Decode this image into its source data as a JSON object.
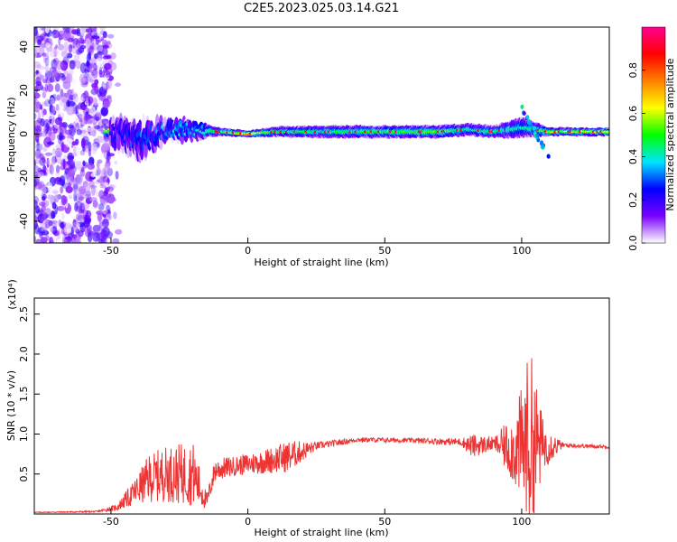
{
  "chart_data": {
    "title": "C2E5.2023.025.03.14.G21",
    "panels": [
      {
        "type": "heatmap",
        "xlabel": "Height of straight line (km)",
        "ylabel": "Frequency (Hz)",
        "xlim": [
          -78,
          132
        ],
        "ylim": [
          -50,
          49
        ],
        "x_ticks": [
          -50,
          0,
          50,
          100
        ],
        "y_ticks": [
          -40,
          -20,
          0,
          20,
          40
        ],
        "colorbar": {
          "label": "Normalized spectral amplitude",
          "range": [
            0,
            1
          ],
          "ticks": [
            "0.0",
            "0.2",
            "0.4",
            "0.6",
            "0.8"
          ],
          "colors": [
            "#ffffff",
            "#7a00ff",
            "#0000ff",
            "#00e5ff",
            "#00ff00",
            "#ffff00",
            "#ff8000",
            "#ff0000",
            "#ff0090"
          ]
        },
        "ridge": [
          {
            "x": -50,
            "f": 1,
            "amp": 0.25,
            "spread": 6
          },
          {
            "x": -40,
            "f": -3,
            "amp": 0.35,
            "spread": 8
          },
          {
            "x": -30,
            "f": 2,
            "amp": 0.4,
            "spread": 5
          },
          {
            "x": -20,
            "f": 2,
            "amp": 0.45,
            "spread": 4
          },
          {
            "x": -10,
            "f": 1,
            "amp": 0.6,
            "spread": 2
          },
          {
            "x": 0,
            "f": 0,
            "amp": 0.85,
            "spread": 1.5
          },
          {
            "x": 10,
            "f": 1,
            "amp": 0.55,
            "spread": 2.5
          },
          {
            "x": 30,
            "f": 1,
            "amp": 0.55,
            "spread": 3
          },
          {
            "x": 50,
            "f": 1,
            "amp": 0.6,
            "spread": 3
          },
          {
            "x": 70,
            "f": 1,
            "amp": 0.65,
            "spread": 3
          },
          {
            "x": 80,
            "f": 2,
            "amp": 0.5,
            "spread": 3
          },
          {
            "x": 90,
            "f": 1,
            "amp": 0.55,
            "spread": 3
          },
          {
            "x": 100,
            "f": 3,
            "amp": 0.45,
            "spread": 5
          },
          {
            "x": 110,
            "f": 1,
            "amp": 0.7,
            "spread": 2
          },
          {
            "x": 132,
            "f": 1,
            "amp": 0.75,
            "spread": 2
          }
        ]
      },
      {
        "type": "line",
        "xlabel": "Height of straight line (km)",
        "ylabel": "SNR (10 * v/v)",
        "y_scale_label": "(x10⁴)",
        "xlim": [
          -78,
          132
        ],
        "ylim": [
          0,
          2.7
        ],
        "x_ticks": [
          -50,
          0,
          50,
          100
        ],
        "y_ticks": [
          0.5,
          1.0,
          1.5,
          2.0,
          2.5
        ],
        "series": [
          {
            "color": "#ee3333",
            "envelope": [
              {
                "x": -78,
                "mean": 0.02,
                "noise": 0.005
              },
              {
                "x": -55,
                "mean": 0.03,
                "noise": 0.01
              },
              {
                "x": -48,
                "mean": 0.08,
                "noise": 0.04
              },
              {
                "x": -42,
                "mean": 0.25,
                "noise": 0.15
              },
              {
                "x": -36,
                "mean": 0.45,
                "noise": 0.3
              },
              {
                "x": -30,
                "mean": 0.5,
                "noise": 0.35
              },
              {
                "x": -20,
                "mean": 0.5,
                "noise": 0.4
              },
              {
                "x": -15,
                "mean": 0.15,
                "noise": 0.1
              },
              {
                "x": -12,
                "mean": 0.55,
                "noise": 0.15
              },
              {
                "x": -5,
                "mean": 0.6,
                "noise": 0.12
              },
              {
                "x": 5,
                "mean": 0.65,
                "noise": 0.15
              },
              {
                "x": 15,
                "mean": 0.72,
                "noise": 0.2
              },
              {
                "x": 25,
                "mean": 0.85,
                "noise": 0.05
              },
              {
                "x": 40,
                "mean": 0.93,
                "noise": 0.03
              },
              {
                "x": 60,
                "mean": 0.92,
                "noise": 0.03
              },
              {
                "x": 78,
                "mean": 0.9,
                "noise": 0.05
              },
              {
                "x": 82,
                "mean": 0.85,
                "noise": 0.15
              },
              {
                "x": 90,
                "mean": 0.88,
                "noise": 0.08
              },
              {
                "x": 98,
                "mean": 0.8,
                "noise": 0.5
              },
              {
                "x": 103,
                "mean": 0.9,
                "noise": 1.2
              },
              {
                "x": 108,
                "mean": 0.85,
                "noise": 0.3
              },
              {
                "x": 115,
                "mean": 0.86,
                "noise": 0.03
              },
              {
                "x": 132,
                "mean": 0.84,
                "noise": 0.02
              }
            ]
          }
        ]
      }
    ]
  }
}
